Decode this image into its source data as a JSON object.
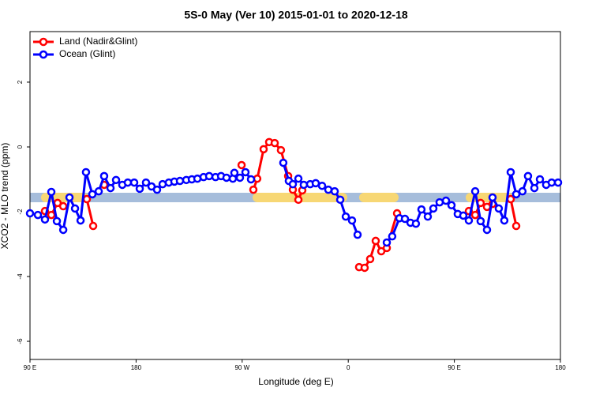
{
  "chart_data": {
    "type": "line",
    "title": "5S-0 May (Ver 10)   2015-01-01 to 2020-12-18",
    "x_label": "Longitude (deg E)",
    "y_label": "XCO2 - MLO trend (ppm)",
    "xlim": [
      90,
      540
    ],
    "ylim": [
      -6.56,
      3.56
    ],
    "xticks": [
      {
        "value": 90,
        "label": "90 E"
      },
      180,
      {
        "value": 270,
        "label": "90 W"
      },
      {
        "value": 360,
        "label": "0"
      },
      {
        "value": 450,
        "label": "90 E"
      },
      {
        "value": 540,
        "label": "180"
      }
    ],
    "yticks": [
      -6,
      -4,
      -2,
      0,
      2
    ],
    "legend": "top-left",
    "series": [
      {
        "name": "Land (Nadir&Glint)",
        "color": "#ff0000",
        "x": [
          102.7,
          108.1,
          113.4,
          118.2,
          125,
          138.2,
          143.6,
          148,
          152.9,
          200,
          269.5,
          274,
          279.5,
          282.8,
          288.2,
          292.9,
          297.6,
          302.9,
          309.0,
          313.0,
          317.7,
          321.0,
          340,
          369.2,
          373.9,
          378.6,
          383.3,
          388.0,
          392.7,
          401.4,
          430,
          462.3,
          467.7,
          472.3,
          477.7,
          482.4,
          490,
          497.8,
          502.5
        ],
        "values": [
          -1.98,
          -2.1,
          -1.73,
          -1.83,
          null,
          -1.61,
          -2.44,
          null,
          -1.17,
          null,
          -0.56,
          null,
          -1.32,
          -0.98,
          -0.07,
          0.15,
          0.12,
          -0.1,
          -0.9,
          -1.32,
          -1.63,
          -1.34,
          null,
          -3.71,
          -3.73,
          -3.46,
          -2.9,
          -3.22,
          -3.12,
          -2.05,
          null,
          -1.98,
          -2.1,
          -1.73,
          -1.85,
          -1.76,
          null,
          -1.61,
          -2.44
        ]
      },
      {
        "name": "Ocean (Glint)",
        "color": "#0000ff",
        "x": [
          90,
          96.7,
          102.7,
          108.1,
          112.8,
          118.2,
          123.5,
          128.2,
          132.9,
          137.5,
          142.9,
          148.3,
          152.9,
          158.3,
          163.0,
          168.3,
          173.0,
          178.4,
          183.1,
          188.4,
          193.1,
          197.8,
          202.5,
          207.8,
          212.5,
          217.2,
          222.6,
          227.3,
          232.0,
          237.3,
          242.0,
          247.4,
          252.1,
          256.7,
          262.1,
          263.4,
          268.1,
          272.8,
          277.5,
          300,
          304.9,
          309.6,
          313.0,
          317.7,
          322.3,
          327.7,
          332.4,
          337.8,
          343.1,
          348.5,
          353.2,
          357.9,
          363.2,
          367.9,
          380,
          392.7,
          397.3,
          403.4,
          408.1,
          412.8,
          417.4,
          422.1,
          427.5,
          432.2,
          437.5,
          442.9,
          447.6,
          452.9,
          457.6,
          462.3,
          467.7,
          472.3,
          477.7,
          482.4,
          487.7,
          492.4,
          497.8,
          502.5,
          507.8,
          512.5,
          517.9,
          522.6,
          527.9,
          532.6,
          538.0
        ],
        "values": [
          -2.05,
          -2.1,
          -2.24,
          -1.39,
          -2.29,
          -2.56,
          -1.56,
          -1.9,
          -2.27,
          -0.78,
          -1.46,
          -1.37,
          -0.9,
          -1.27,
          -1.02,
          -1.17,
          -1.1,
          -1.1,
          -1.29,
          -1.1,
          -1.22,
          -1.32,
          -1.15,
          -1.1,
          -1.07,
          -1.05,
          -1.02,
          -1.0,
          -0.98,
          -0.93,
          -0.9,
          -0.93,
          -0.9,
          -0.95,
          -0.98,
          -0.8,
          -0.95,
          -0.78,
          -1.0,
          null,
          -0.49,
          -1.05,
          -1.15,
          -0.98,
          -1.17,
          -1.15,
          -1.12,
          -1.2,
          -1.32,
          -1.37,
          -1.63,
          -2.15,
          -2.27,
          -2.71,
          null,
          -2.95,
          -2.76,
          -2.2,
          -2.22,
          -2.34,
          -2.37,
          -1.93,
          -2.15,
          -1.9,
          -1.71,
          -1.66,
          -1.8,
          -2.07,
          -2.12,
          -2.27,
          -1.37,
          -2.29,
          -2.56,
          -1.56,
          -1.9,
          -2.27,
          -0.78,
          -1.46,
          -1.37,
          -0.9,
          -1.27,
          -1.0,
          -1.17,
          -1.1,
          -1.1
        ]
      }
    ]
  }
}
